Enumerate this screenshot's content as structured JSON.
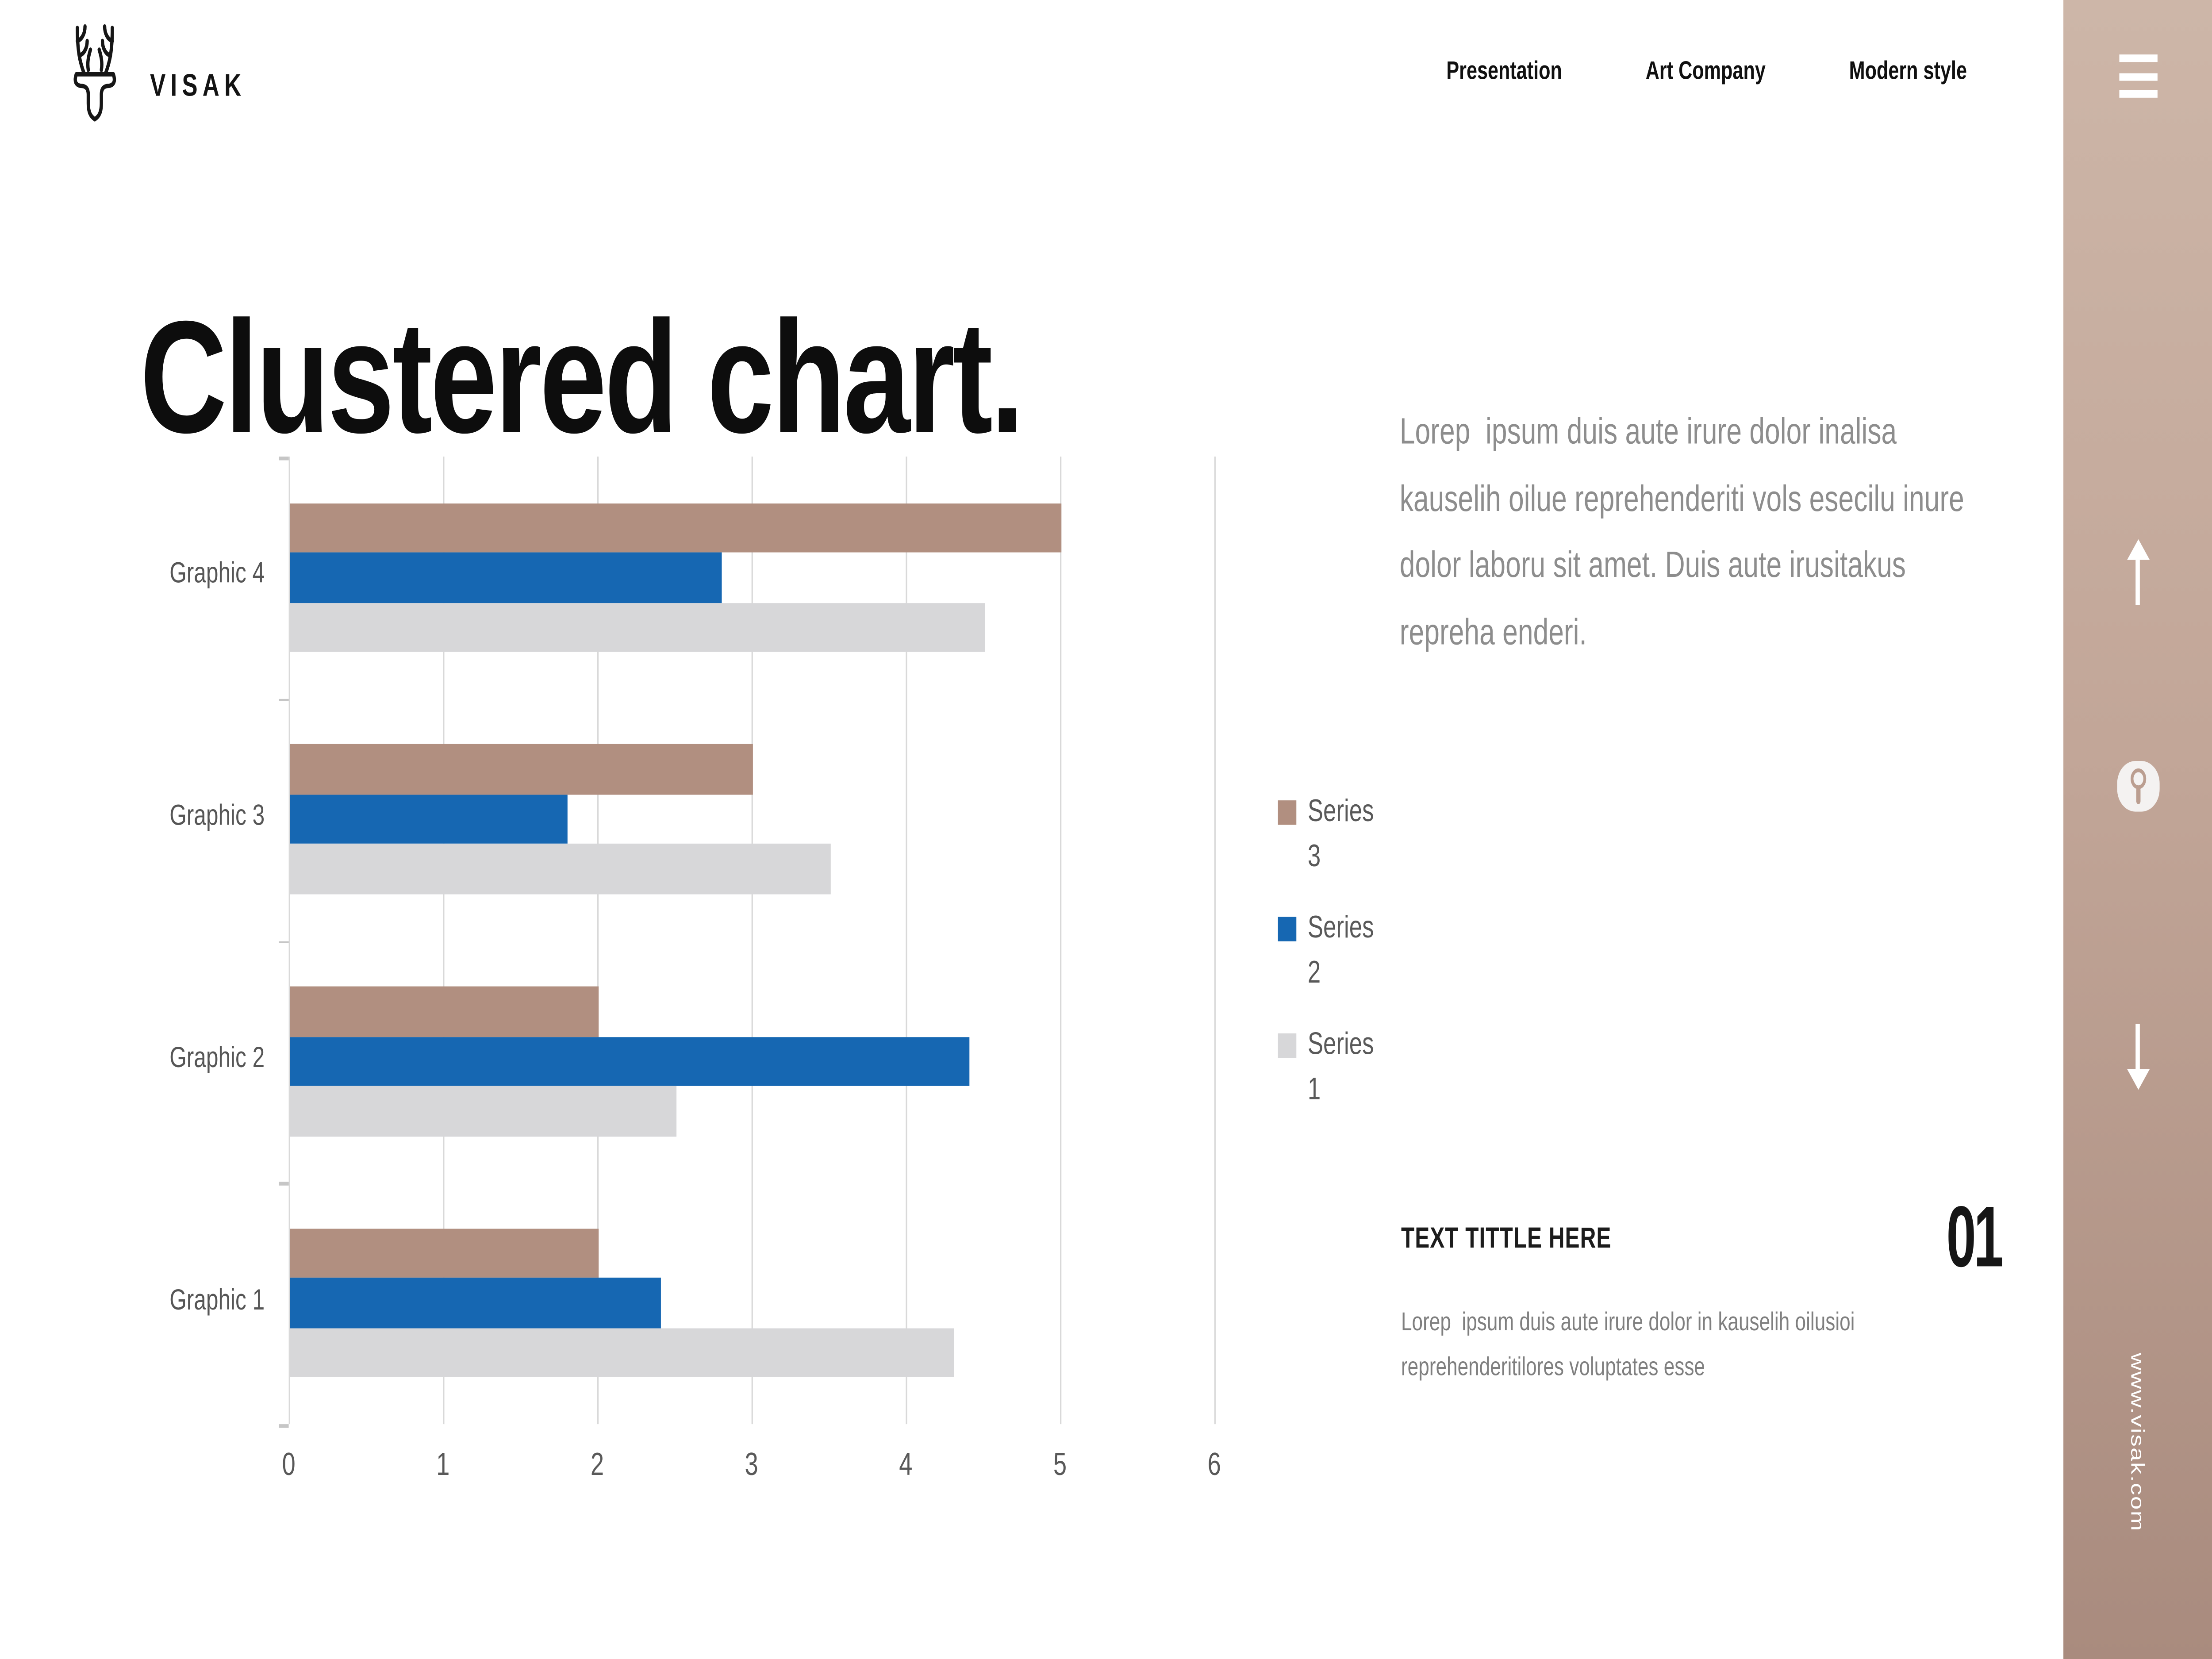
{
  "brand": {
    "logo_icon": "deer-logo",
    "name": "VISAK"
  },
  "nav": {
    "items": [
      "Presentation",
      "Art Company",
      "Modern style"
    ]
  },
  "title": "Clustered chart.",
  "intro_paragraph": "Lorep  ipsum duis aute irure dolor inalisa kauselih oilue reprehenderiti vols esecilu inure dolor laboru sit amet. Duis aute irusitakus repreha enderi.",
  "chart_data": {
    "type": "bar",
    "orientation": "horizontal",
    "categories": [
      "Graphic 4",
      "Graphic 3",
      "Graphic 2",
      "Graphic 1"
    ],
    "series": [
      {
        "name": "Series 3",
        "color": "#b18f80",
        "values": [
          5.0,
          3.0,
          2.0,
          2.0
        ]
      },
      {
        "name": "Series 2",
        "color": "#1667b2",
        "values": [
          2.8,
          1.8,
          4.4,
          2.4
        ]
      },
      {
        "name": "Series 1",
        "color": "#d7d7d9",
        "values": [
          4.5,
          3.5,
          2.5,
          4.3
        ]
      }
    ],
    "xlim": [
      0,
      6
    ],
    "x_ticks": [
      "0",
      "1",
      "2",
      "3",
      "4",
      "5",
      "6"
    ],
    "grid": true,
    "gridline_color": "#d9d9d9",
    "axis_text_color": "#595959",
    "legend_position": "right-of-plot",
    "bar_order_top_to_bottom": [
      "Series 3",
      "Series 2",
      "Series 1"
    ]
  },
  "section": {
    "title": "TEXT TITTLE HERE",
    "number": "01",
    "body": "Lorep  ipsum duis aute irure dolor in kauselih oilusioi reprehenderitilores voluptates esse"
  },
  "sidebar": {
    "website": "www.visak.com",
    "gradient_top": "#cdb6a8",
    "gradient_bottom": "#a98b7e",
    "icons": [
      "hamburger-menu-icon",
      "arrow-up-icon",
      "mouse-scroll-icon",
      "arrow-down-icon"
    ]
  },
  "colors": {
    "background": "#ffffff",
    "title_text": "#0d0d0d",
    "body_text_gray": "#8d8d8d",
    "accent_tan": "#b18f80",
    "accent_blue": "#1667b2",
    "neutral_gray": "#d7d7d9"
  }
}
